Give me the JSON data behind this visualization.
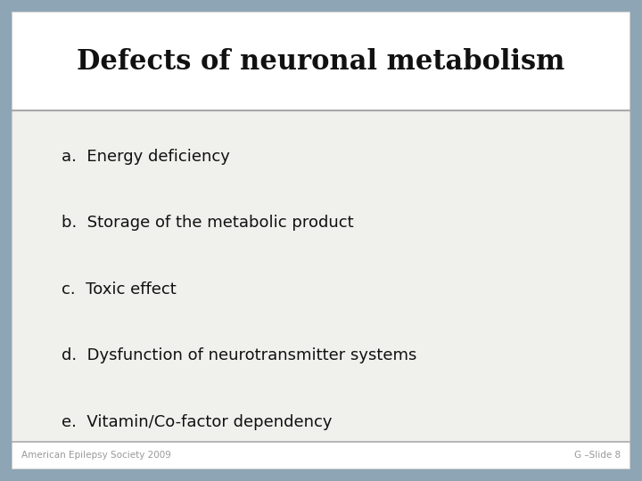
{
  "title": "Defects of neuronal metabolism",
  "items": [
    "a.  Energy deficiency",
    "b.  Storage of the metabolic product",
    "c.  Toxic effect",
    "d.  Dysfunction of neurotransmitter systems",
    "e.  Vitamin/Co-factor dependency"
  ],
  "footer_left": "American Epilepsy Society 2009",
  "footer_right": "G –Slide 8",
  "bg_outer": "#8da5b5",
  "bg_slide": "#ffffff",
  "bg_content": "#f0f0ec",
  "title_color": "#111111",
  "text_color": "#111111",
  "footer_color": "#999999",
  "border_color": "#cccccc",
  "title_line_color": "#aaaaaa",
  "footer_line_color": "#aaaaaa",
  "title_fontsize": 22,
  "item_fontsize": 13,
  "footer_fontsize": 7.5
}
